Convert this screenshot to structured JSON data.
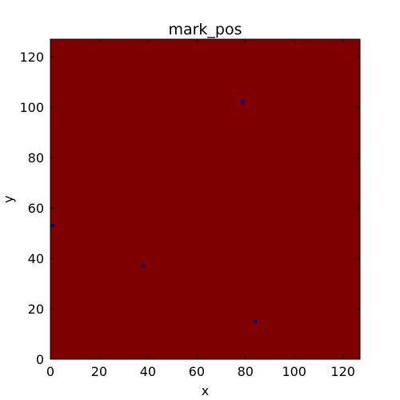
{
  "chart_data": {
    "type": "heatmap",
    "title": "mark_pos",
    "xlabel": "x",
    "ylabel": "y",
    "xlim": [
      0,
      127
    ],
    "ylim": [
      0,
      127
    ],
    "xticks": [
      0,
      20,
      40,
      60,
      80,
      100,
      120
    ],
    "yticks": [
      0,
      20,
      40,
      60,
      80,
      100,
      120
    ],
    "grid": false,
    "background_value_color": "#7f0000",
    "mark_color": "#00007f",
    "marks": [
      {
        "x": 79,
        "y": 102
      },
      {
        "x": 1,
        "y": 53
      },
      {
        "x": 38,
        "y": 37
      },
      {
        "x": 84,
        "y": 15
      }
    ]
  }
}
